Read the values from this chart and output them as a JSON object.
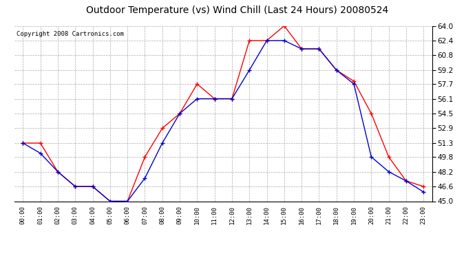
{
  "title": "Outdoor Temperature (vs) Wind Chill (Last 24 Hours) 20080524",
  "copyright": "Copyright 2008 Cartronics.com",
  "hours": [
    "00:00",
    "01:00",
    "02:00",
    "03:00",
    "04:00",
    "05:00",
    "06:00",
    "07:00",
    "08:00",
    "09:00",
    "10:00",
    "11:00",
    "12:00",
    "13:00",
    "14:00",
    "15:00",
    "16:00",
    "17:00",
    "18:00",
    "19:00",
    "20:00",
    "21:00",
    "22:00",
    "23:00"
  ],
  "temp": [
    51.3,
    51.3,
    48.2,
    46.6,
    46.6,
    45.0,
    45.0,
    49.8,
    52.9,
    54.5,
    57.7,
    56.1,
    56.1,
    62.4,
    62.4,
    64.0,
    61.5,
    61.5,
    59.2,
    58.0,
    54.5,
    49.8,
    47.2,
    46.6
  ],
  "wind_chill": [
    51.3,
    50.2,
    48.2,
    46.6,
    46.6,
    45.0,
    45.0,
    47.5,
    51.3,
    54.5,
    56.1,
    56.1,
    56.1,
    59.2,
    62.4,
    62.4,
    61.5,
    61.5,
    59.2,
    57.7,
    49.8,
    48.2,
    47.2,
    46.0
  ],
  "temp_color": "#ff0000",
  "wind_chill_color": "#0000cc",
  "ylim": [
    45.0,
    64.0
  ],
  "yticks": [
    45.0,
    46.6,
    48.2,
    49.8,
    51.3,
    52.9,
    54.5,
    56.1,
    57.7,
    59.2,
    60.8,
    62.4,
    64.0
  ],
  "background_color": "#ffffff",
  "plot_bg_color": "#ffffff",
  "grid_color": "#aaaaaa",
  "title_fontsize": 10,
  "copyright_fontsize": 6.5
}
